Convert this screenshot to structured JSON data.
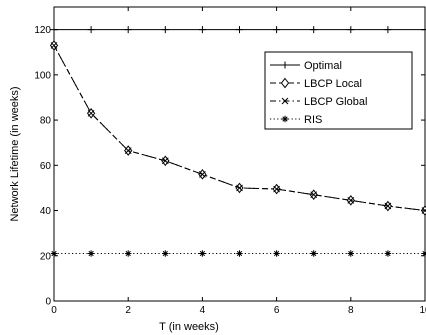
{
  "chart_data": {
    "type": "line",
    "title": "",
    "xlabel": "T (in weeks)",
    "ylabel": "Network Lifetime (in weeks)",
    "xlim": [
      0,
      10
    ],
    "ylim": [
      0,
      130
    ],
    "xticks": [
      0,
      2,
      4,
      6,
      8,
      10
    ],
    "yticks": [
      0,
      20,
      40,
      60,
      80,
      100,
      120
    ],
    "grid": false,
    "legend_position": "top-right",
    "x": [
      0,
      1,
      2,
      3,
      4,
      5,
      6,
      7,
      8,
      9,
      10
    ],
    "series": [
      {
        "name": "Optimal",
        "color": "#000000",
        "dash": "solid",
        "marker": "plus",
        "values": [
          120,
          120,
          120,
          120,
          120,
          120,
          120,
          120,
          120,
          120,
          120
        ]
      },
      {
        "name": "LBCP Local",
        "color": "#000000",
        "dash": "dashed",
        "marker": "diamond",
        "values": [
          113,
          83,
          66.5,
          62,
          56,
          50,
          49.5,
          47,
          44.5,
          42,
          40
        ]
      },
      {
        "name": "LBCP Global",
        "color": "#000000",
        "dash": "dashdot",
        "marker": "x",
        "values": [
          113,
          83,
          66.5,
          62,
          56,
          50,
          49.5,
          47,
          44.5,
          42,
          40
        ]
      },
      {
        "name": "RIS",
        "color": "#000000",
        "dash": "dotted",
        "marker": "star",
        "values": [
          21,
          21,
          21,
          21,
          21,
          21,
          21,
          21,
          21,
          21,
          21
        ]
      }
    ]
  }
}
